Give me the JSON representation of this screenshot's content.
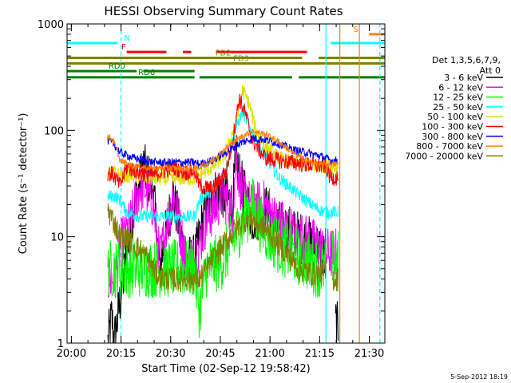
{
  "chart_data": {
    "type": "line",
    "title": "HESSI Observing Summary Count Rates",
    "xlabel": "Start Time (02-Sep-12 19:58:42)",
    "ylabel": "Count Rate (s⁻¹ detector⁻¹)",
    "ylog": true,
    "xlim": [
      0,
      96
    ],
    "ylim": [
      1,
      1000
    ],
    "x_ticks": [
      {
        "v": 1.3,
        "label": "20:00"
      },
      {
        "v": 16.3,
        "label": "20:15"
      },
      {
        "v": 31.3,
        "label": "20:30"
      },
      {
        "v": 46.3,
        "label": "20:45"
      },
      {
        "v": 61.3,
        "label": "21:00"
      },
      {
        "v": 76.3,
        "label": "21:15"
      },
      {
        "v": 91.3,
        "label": "21:30"
      }
    ],
    "y_ticks": [
      {
        "v": 1,
        "label": "1"
      },
      {
        "v": 10,
        "label": "10"
      },
      {
        "v": 100,
        "label": "100"
      },
      {
        "v": 1000,
        "label": "1000"
      }
    ],
    "legend": {
      "header": [
        "Det 1,3,5,6,7,9,",
        "Att 0"
      ],
      "placement": "right"
    },
    "series": [
      {
        "name": "3 - 6 keV",
        "color": "#000000",
        "noise": 0.25,
        "points": [
          [
            12.3,
            1
          ],
          [
            13.5,
            1.8
          ],
          [
            14.2,
            1
          ],
          [
            20,
            18
          ],
          [
            23,
            46
          ],
          [
            26,
            28
          ],
          [
            28,
            5
          ],
          [
            32,
            25
          ],
          [
            36,
            6
          ],
          [
            38.5,
            6
          ],
          [
            42,
            20
          ],
          [
            46,
            28
          ],
          [
            50,
            20
          ],
          [
            51,
            55
          ],
          [
            53,
            28
          ],
          [
            56,
            15
          ],
          [
            60,
            18
          ],
          [
            63,
            13
          ],
          [
            66,
            12
          ],
          [
            70,
            10
          ],
          [
            73,
            9
          ],
          [
            76,
            8
          ],
          [
            78.2,
            6
          ],
          [
            78.3,
            null
          ],
          [
            81,
            1.6
          ],
          [
            82,
            1.3
          ]
        ]
      },
      {
        "name": "6 - 12 keV",
        "color": "#ff00ff",
        "noise": 0.25,
        "points": [
          [
            12.3,
            4
          ],
          [
            14.5,
            4
          ],
          [
            16,
            8
          ],
          [
            19,
            13
          ],
          [
            22,
            30
          ],
          [
            24,
            28
          ],
          [
            26,
            20
          ],
          [
            28,
            6
          ],
          [
            32,
            25
          ],
          [
            36,
            6
          ],
          [
            38.5,
            6
          ],
          [
            42,
            14
          ],
          [
            47,
            25
          ],
          [
            50,
            18
          ],
          [
            51,
            55
          ],
          [
            53,
            25
          ],
          [
            56,
            18
          ],
          [
            59,
            20
          ],
          [
            61,
            18
          ],
          [
            63,
            14
          ],
          [
            66,
            12
          ],
          [
            70,
            10
          ],
          [
            73,
            9
          ],
          [
            76,
            8
          ],
          [
            78.2,
            7
          ],
          [
            79.5,
            7
          ],
          [
            82,
            7
          ]
        ]
      },
      {
        "name": "12 - 25 keV",
        "color": "#00ff00",
        "noise": 0.28,
        "points": [
          [
            12.3,
            5
          ],
          [
            16,
            5
          ],
          [
            22,
            5
          ],
          [
            26,
            5
          ],
          [
            30,
            5
          ],
          [
            34,
            5
          ],
          [
            38.5,
            5
          ],
          [
            40,
            2
          ],
          [
            42,
            5
          ],
          [
            47,
            6
          ],
          [
            52,
            12
          ],
          [
            56,
            20
          ],
          [
            58,
            14
          ],
          [
            61,
            10
          ],
          [
            65,
            8
          ],
          [
            68,
            7
          ],
          [
            72,
            6
          ],
          [
            76,
            5
          ],
          [
            78.2,
            5
          ],
          [
            78.3,
            null
          ],
          [
            80,
            6
          ],
          [
            82,
            6
          ]
        ]
      },
      {
        "name": "25 - 50 keV",
        "color": "#00ffff",
        "noise": 0.06,
        "points": [
          [
            12.3,
            24
          ],
          [
            14.5,
            24
          ],
          [
            16,
            22
          ],
          [
            18,
            17
          ],
          [
            22,
            15.5
          ],
          [
            28,
            15.5
          ],
          [
            34,
            15.5
          ],
          [
            38.5,
            15.5
          ],
          [
            40,
            22
          ],
          [
            44,
            28
          ],
          [
            48,
            42
          ],
          [
            51,
            105
          ],
          [
            53,
            150
          ],
          [
            55,
            110
          ],
          [
            58,
            70
          ],
          [
            61,
            50
          ],
          [
            64,
            36
          ],
          [
            68,
            28
          ],
          [
            72,
            22
          ],
          [
            76,
            18
          ],
          [
            78.2,
            17
          ],
          [
            79.5,
            17
          ],
          [
            82,
            17
          ]
        ]
      },
      {
        "name": "50 - 100 keV",
        "color": "#e0e000",
        "noise": 0.07,
        "points": [
          [
            12.3,
            40
          ],
          [
            14.5,
            40
          ],
          [
            16,
            38
          ],
          [
            20,
            37
          ],
          [
            26,
            35
          ],
          [
            32,
            35
          ],
          [
            38.5,
            35
          ],
          [
            40,
            38
          ],
          [
            44,
            45
          ],
          [
            48,
            60
          ],
          [
            51,
            120
          ],
          [
            53,
            240
          ],
          [
            55,
            180
          ],
          [
            57,
            100
          ],
          [
            60,
            70
          ],
          [
            64,
            55
          ],
          [
            68,
            50
          ],
          [
            72,
            48
          ],
          [
            76,
            46
          ],
          [
            78.2,
            46
          ],
          [
            79.5,
            45
          ],
          [
            82,
            45
          ]
        ]
      },
      {
        "name": "100 - 300 keV",
        "color": "#ff0000",
        "noise": 0.08,
        "points": [
          [
            12.3,
            40
          ],
          [
            14,
            38
          ],
          [
            16,
            30
          ],
          [
            18,
            45
          ],
          [
            22,
            40
          ],
          [
            26,
            38
          ],
          [
            32,
            45
          ],
          [
            36,
            40
          ],
          [
            38.5,
            42
          ],
          [
            40,
            30
          ],
          [
            44,
            28
          ],
          [
            48,
            40
          ],
          [
            50,
            80
          ],
          [
            52,
            200
          ],
          [
            54,
            140
          ],
          [
            56,
            80
          ],
          [
            60,
            55
          ],
          [
            64,
            52
          ],
          [
            68,
            50
          ],
          [
            72,
            48
          ],
          [
            76,
            46
          ],
          [
            78.2,
            46
          ],
          [
            79.5,
            36
          ],
          [
            82,
            36
          ]
        ]
      },
      {
        "name": "300 - 800 keV",
        "color": "#0000ff",
        "noise": 0.04,
        "points": [
          [
            12.3,
            80
          ],
          [
            14,
            75
          ],
          [
            16,
            62
          ],
          [
            20,
            55
          ],
          [
            26,
            50
          ],
          [
            32,
            50
          ],
          [
            38.5,
            50
          ],
          [
            40,
            48
          ],
          [
            44,
            52
          ],
          [
            48,
            62
          ],
          [
            52,
            75
          ],
          [
            56,
            84
          ],
          [
            60,
            82
          ],
          [
            64,
            75
          ],
          [
            68,
            66
          ],
          [
            72,
            62
          ],
          [
            76,
            58
          ],
          [
            78.2,
            55
          ],
          [
            79.5,
            52
          ],
          [
            82,
            52
          ]
        ]
      },
      {
        "name": "800 - 7000 keV",
        "color": "#ff8000",
        "noise": 0.03,
        "points": [
          [
            12.3,
            88
          ],
          [
            14,
            80
          ],
          [
            16,
            52
          ],
          [
            20,
            46
          ],
          [
            26,
            44
          ],
          [
            32,
            44
          ],
          [
            38.5,
            44
          ],
          [
            40,
            45
          ],
          [
            44,
            52
          ],
          [
            48,
            68
          ],
          [
            52,
            85
          ],
          [
            56,
            98
          ],
          [
            60,
            92
          ],
          [
            64,
            78
          ],
          [
            68,
            62
          ],
          [
            72,
            52
          ],
          [
            76,
            48
          ],
          [
            78.2,
            48
          ],
          [
            79.5,
            48
          ],
          [
            82,
            48
          ]
        ]
      },
      {
        "name": "7000 - 20000 keV",
        "color": "#808000",
        "noise": 0.12,
        "points": [
          [
            12.3,
            18
          ],
          [
            14,
            14
          ],
          [
            16,
            10
          ],
          [
            18,
            10
          ],
          [
            21,
            8
          ],
          [
            24,
            6.5
          ],
          [
            27,
            4.5
          ],
          [
            30,
            4
          ],
          [
            34,
            4
          ],
          [
            38.5,
            4
          ],
          [
            40,
            4
          ],
          [
            44,
            6
          ],
          [
            48,
            9
          ],
          [
            52,
            13
          ],
          [
            55,
            15
          ],
          [
            58,
            13
          ],
          [
            61,
            11
          ],
          [
            64,
            8.5
          ],
          [
            67,
            6.5
          ],
          [
            70,
            5
          ],
          [
            74,
            4.5
          ],
          [
            78.2,
            4.5
          ],
          [
            78.3,
            null
          ],
          [
            80,
            4
          ],
          [
            82,
            4
          ]
        ]
      }
    ],
    "vlines": [
      {
        "x": 16.3,
        "color": "#00ffff",
        "style": "dashed",
        "y_from": 1,
        "y_to": 1000
      },
      {
        "x": 78.2,
        "color": "#00ffff",
        "style": "solid",
        "y_from": 1,
        "y_to": 1000
      },
      {
        "x": 82.4,
        "color": "#ff8000",
        "style": "solid",
        "y_from": 1,
        "y_to": 1000
      },
      {
        "x": 88.3,
        "color": "#ff8000",
        "style": "solid",
        "y_from": 1,
        "y_to": 1000
      },
      {
        "x": 94.5,
        "color": "#00ffff",
        "style": "dashed",
        "y_from": 1,
        "y_to": 1000
      }
    ],
    "flag_bars": [
      {
        "label": "N",
        "color": "#00ffff",
        "y": 660,
        "segments": [
          [
            0,
            15.3
          ],
          [
            79.6,
            96
          ]
        ],
        "label_x": 17.2
      },
      {
        "label": "S",
        "color": "#ff8000",
        "y": 800,
        "segments": [
          [
            91.2,
            96
          ]
        ],
        "label_x": 86.5
      },
      {
        "label": "F",
        "color": "#ff0000",
        "y": 545,
        "segments": [
          [
            18,
            30
          ],
          [
            35,
            37.5
          ],
          [
            45,
            72.5
          ]
        ],
        "label_x": 16.4
      },
      {
        "label": "FD2",
        "color": "#808000",
        "y": 480,
        "segments": [
          [
            0,
            71
          ],
          [
            76,
            96
          ]
        ],
        "label_x": 44.8
      },
      {
        "label": "FD3",
        "color": "#808000",
        "y": 425,
        "segments": [
          [
            0,
            96
          ]
        ],
        "label_x": 50.2
      },
      {
        "label": "RD0",
        "color": "#008000",
        "y": 360,
        "segments": [
          [
            0,
            21
          ],
          [
            23,
            38.5
          ]
        ],
        "label_x": 12.5
      },
      {
        "label": "RD6",
        "color": "#008000",
        "y": 315,
        "segments": [
          [
            0,
            38.5
          ],
          [
            40,
            68
          ],
          [
            70,
            96
          ]
        ],
        "label_x": 21.5
      }
    ],
    "timestamp": "5-Sep-2012 18:19"
  }
}
